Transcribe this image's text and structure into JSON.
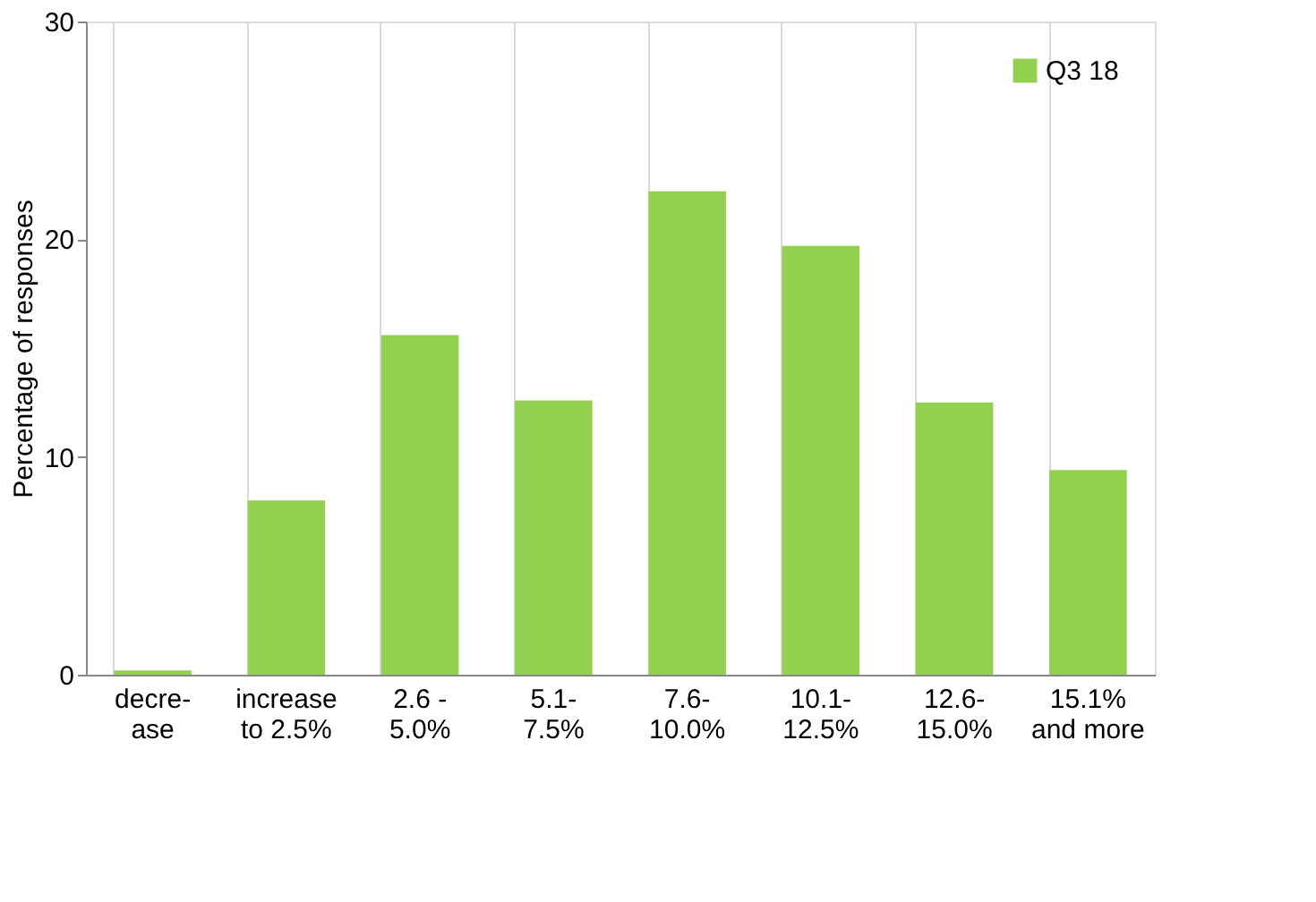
{
  "chart_data": {
    "type": "bar",
    "ylabel": "Percentage of responses",
    "categories": [
      "decre-\nase",
      "increase\nto 2.5%",
      "2.6 -\n5.0%",
      "5.1-\n7.5%",
      "7.6-\n10.0%",
      "10.1-\n12.5%",
      "12.6-\n15.0%",
      "15.1%\nand more"
    ],
    "series": [
      {
        "name": "Q3 18",
        "color": "#92d050",
        "values": [
          0.2,
          8.0,
          15.6,
          12.6,
          22.2,
          19.7,
          12.5,
          9.4
        ]
      }
    ],
    "ylim": [
      0,
      30
    ],
    "yticks": [
      0,
      10,
      20,
      30
    ],
    "grid": "x",
    "legend": "top right"
  }
}
